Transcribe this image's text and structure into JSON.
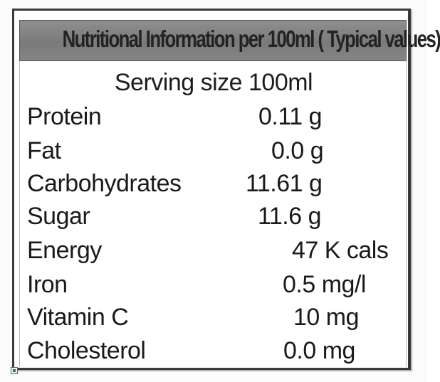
{
  "header": {
    "title": "Nutritional Information per 100ml ( Typical values)"
  },
  "serving_size": "Serving size 100ml",
  "nutrients": [
    {
      "name": "Protein",
      "value": "0.11 g"
    },
    {
      "name": "Fat",
      "value": "0.0 g"
    },
    {
      "name": "Carbohydrates",
      "value": "11.61 g"
    },
    {
      "name": "Sugar",
      "value": "11.6 g"
    },
    {
      "name": "Energy",
      "value": "47 K cals"
    },
    {
      "name": "Iron",
      "value": "0.5 mg/l"
    },
    {
      "name": "Vitamin C",
      "value": "10 mg"
    },
    {
      "name": "Cholesterol",
      "value": "0.0 mg"
    }
  ]
}
